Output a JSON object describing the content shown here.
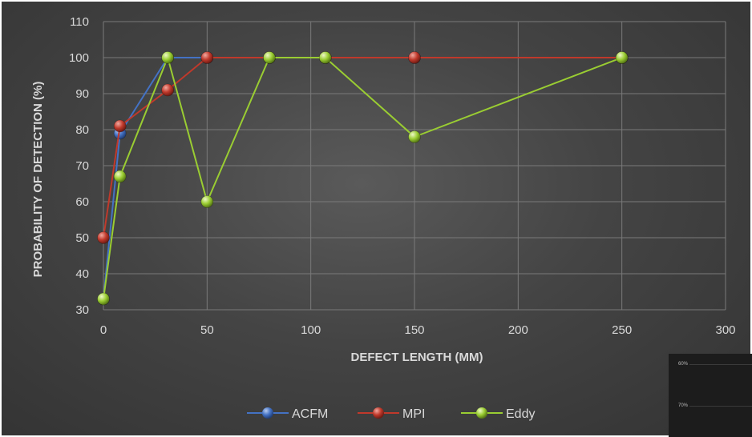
{
  "chart_data": {
    "type": "line",
    "title": "",
    "xlabel": "DEFECT LENGTH (MM)",
    "ylabel": "PROBABILITY OF DETECTION (%)",
    "xlim": [
      0,
      300
    ],
    "ylim": [
      30,
      110
    ],
    "xticks": [
      "0",
      "50",
      "100",
      "150",
      "200",
      "250",
      "300"
    ],
    "yticks": [
      "30",
      "40",
      "50",
      "60",
      "70",
      "80",
      "90",
      "100",
      "110"
    ],
    "grid": true,
    "legend_position": "bottom",
    "series": [
      {
        "name": "ACFM",
        "color": "#4472c4",
        "points": [
          [
            0,
            33
          ],
          [
            8,
            79
          ],
          [
            31,
            100
          ],
          [
            50,
            100
          ],
          [
            80,
            100
          ],
          [
            107,
            100
          ],
          [
            150,
            100
          ],
          [
            250,
            100
          ]
        ]
      },
      {
        "name": "MPI",
        "color": "#c0392b",
        "points": [
          [
            0,
            50
          ],
          [
            8,
            81
          ],
          [
            31,
            91
          ],
          [
            50,
            100
          ],
          [
            80,
            100
          ],
          [
            107,
            100
          ],
          [
            150,
            100
          ],
          [
            250,
            100
          ]
        ]
      },
      {
        "name": "Eddy",
        "color": "#9acd32",
        "points": [
          [
            0,
            33
          ],
          [
            8,
            67
          ],
          [
            31,
            100
          ],
          [
            50,
            60
          ],
          [
            80,
            100
          ],
          [
            107,
            100
          ],
          [
            150,
            78
          ],
          [
            250,
            100
          ]
        ]
      }
    ]
  },
  "inset": {
    "labels": [
      "60%",
      "70%"
    ]
  }
}
